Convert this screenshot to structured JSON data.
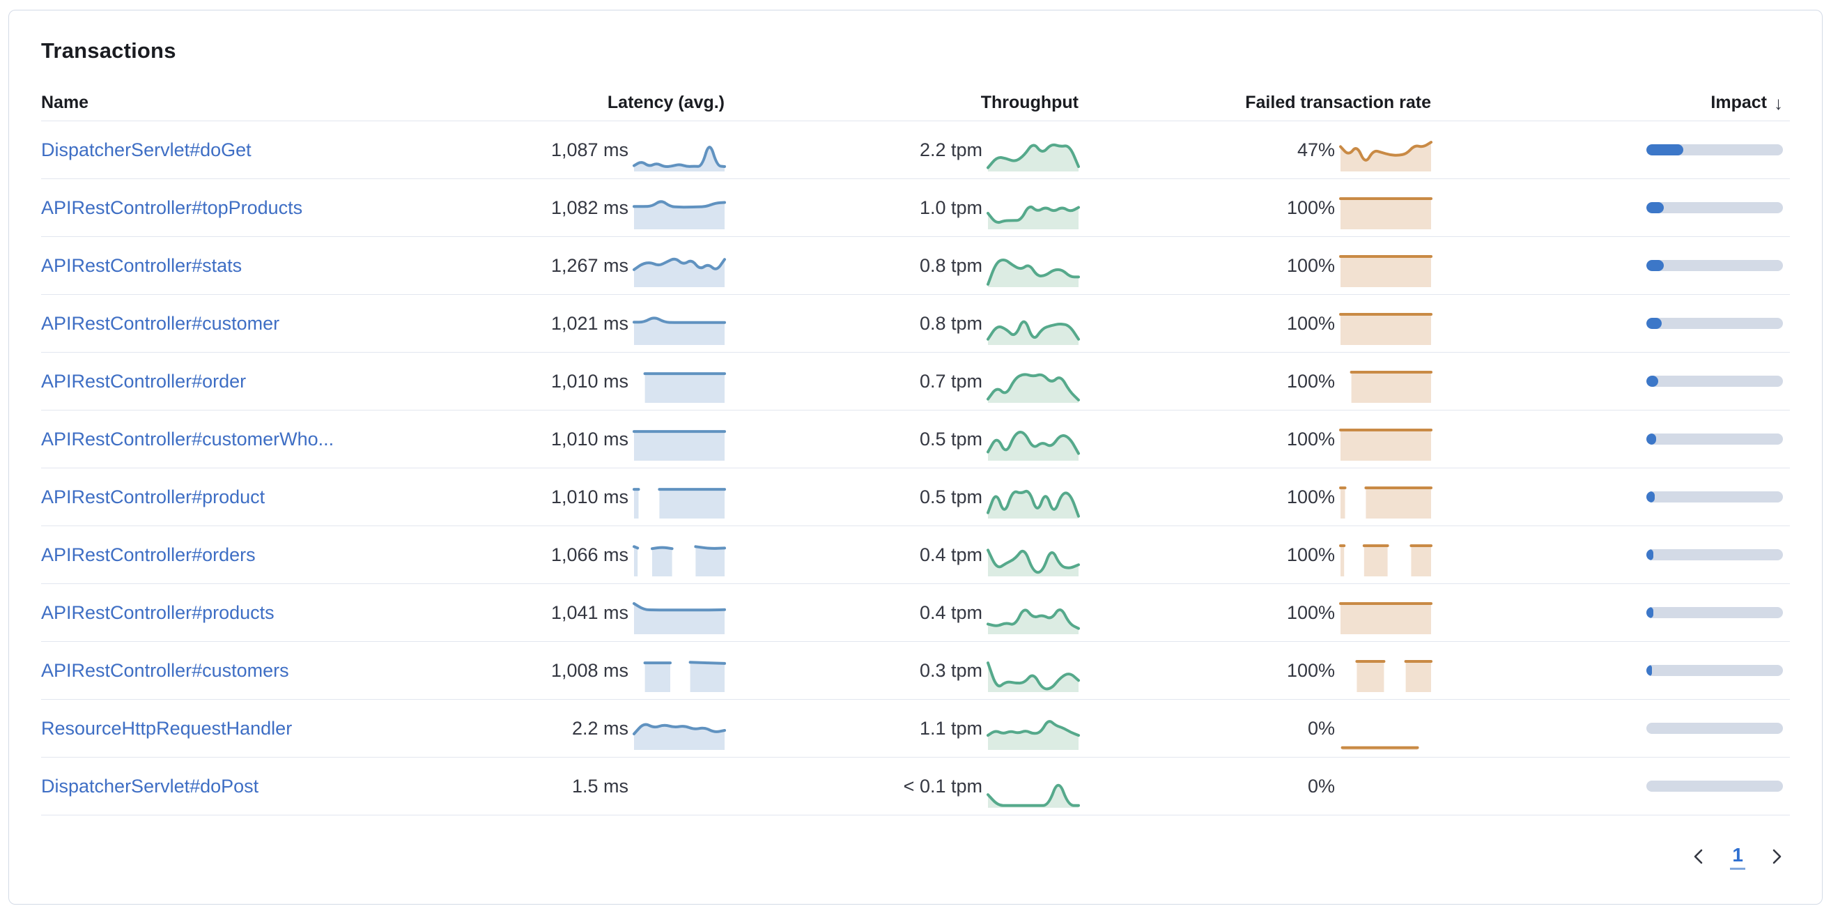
{
  "panel": {
    "title": "Transactions"
  },
  "table": {
    "columns": [
      {
        "key": "name",
        "label": "Name"
      },
      {
        "key": "latency",
        "label": "Latency (avg.)"
      },
      {
        "key": "throughput",
        "label": "Throughput"
      },
      {
        "key": "failed",
        "label": "Failed transaction rate"
      },
      {
        "key": "impact",
        "label": "Impact",
        "sort": "desc",
        "sort_indicator": "↓"
      }
    ],
    "rows": [
      {
        "name": "DispatcherServlet#doGet",
        "latency": "1,087 ms",
        "throughput": "2.2 tpm",
        "failed": "47%",
        "impact_pct": 27,
        "sparks": {
          "latency": [
            {
              "x": [
                0,
                1
              ],
              "v": [
                0.15,
                0.3,
                0.12,
                0.24,
                0.11,
                0.13,
                0.2,
                0.12,
                0.13,
                0.12,
                1.0,
                0.14,
                0.12
              ]
            }
          ],
          "throughput": [
            {
              "x": [
                0,
                1
              ],
              "v": [
                0.08,
                0.45,
                0.4,
                0.28,
                0.5,
                0.95,
                0.55,
                0.9,
                0.8,
                0.85,
                0.12
              ]
            }
          ],
          "failed": [
            {
              "x": [
                0,
                1
              ],
              "v": [
                0.8,
                0.5,
                0.85,
                0.2,
                0.68,
                0.6,
                0.52,
                0.5,
                0.55,
                0.85,
                0.78,
                0.95
              ]
            }
          ]
        }
      },
      {
        "name": "APIRestController#topProducts",
        "latency": "1,082 ms",
        "throughput": "1.0 tpm",
        "failed": "100%",
        "impact_pct": 13,
        "sparks": {
          "latency": [
            {
              "x": [
                0,
                1
              ],
              "v": [
                0.73,
                0.73,
                0.74,
                0.95,
                0.73,
                0.71,
                0.71,
                0.72,
                0.73,
                0.85,
                0.87
              ]
            }
          ],
          "throughput": [
            {
              "x": [
                0,
                1
              ],
              "v": [
                0.5,
                0.15,
                0.25,
                0.25,
                0.26,
                0.8,
                0.55,
                0.72,
                0.55,
                0.72,
                0.55,
                0.7
              ]
            }
          ],
          "failed": [
            {
              "x": [
                0,
                1
              ],
              "v": [
                1,
                1
              ]
            }
          ]
        }
      },
      {
        "name": "APIRestController#stats",
        "latency": "1,267 ms",
        "throughput": "0.8 tpm",
        "failed": "100%",
        "impact_pct": 13,
        "sparks": {
          "latency": [
            {
              "x": [
                0,
                1
              ],
              "v": [
                0.55,
                0.75,
                0.8,
                0.68,
                0.82,
                0.95,
                0.72,
                0.9,
                0.55,
                0.75,
                0.5,
                0.9
              ]
            }
          ],
          "throughput": [
            {
              "x": [
                0,
                1
              ],
              "v": [
                0.05,
                0.8,
                0.92,
                0.7,
                0.55,
                0.75,
                0.32,
                0.35,
                0.55,
                0.55,
                0.3,
                0.3
              ]
            }
          ],
          "failed": [
            {
              "x": [
                0,
                1
              ],
              "v": [
                1,
                1
              ]
            }
          ]
        }
      },
      {
        "name": "APIRestController#customer",
        "latency": "1,021 ms",
        "throughput": "0.8 tpm",
        "failed": "100%",
        "impact_pct": 11,
        "sparks": {
          "latency": [
            {
              "x": [
                0,
                1
              ],
              "v": [
                0.73,
                0.73,
                0.92,
                0.73,
                0.72,
                0.72,
                0.72,
                0.72,
                0.72,
                0.72
              ]
            }
          ],
          "throughput": [
            {
              "x": [
                0,
                1
              ],
              "v": [
                0.15,
                0.62,
                0.5,
                0.2,
                0.95,
                0.06,
                0.52,
                0.62,
                0.68,
                0.62,
                0.15
              ]
            }
          ],
          "failed": [
            {
              "x": [
                0,
                1
              ],
              "v": [
                1,
                1
              ]
            }
          ]
        }
      },
      {
        "name": "APIRestController#order",
        "latency": "1,010 ms",
        "throughput": "0.7 tpm",
        "failed": "100%",
        "impact_pct": 8.5,
        "sparks": {
          "latency": [
            {
              "x": [
                0.12,
                1
              ],
              "v": [
                0.95,
                0.95
              ]
            }
          ],
          "throughput": [
            {
              "x": [
                0,
                1
              ],
              "v": [
                0.08,
                0.5,
                0.2,
                0.8,
                0.95,
                0.85,
                0.95,
                0.62,
                0.9,
                0.35,
                0.05
              ]
            }
          ],
          "failed": [
            {
              "x": [
                0.12,
                1
              ],
              "v": [
                1,
                1
              ]
            }
          ]
        }
      },
      {
        "name": "APIRestController#customerWho...",
        "latency": "1,010 ms",
        "throughput": "0.5 tpm",
        "failed": "100%",
        "impact_pct": 7,
        "sparks": {
          "latency": [
            {
              "x": [
                0,
                1
              ],
              "v": [
                0.95,
                0.95
              ]
            }
          ],
          "throughput": [
            {
              "x": [
                0,
                1
              ],
              "v": [
                0.25,
                0.8,
                0.15,
                0.9,
                0.95,
                0.35,
                0.6,
                0.4,
                0.85,
                0.75,
                0.2
              ]
            }
          ],
          "failed": [
            {
              "x": [
                0,
                1
              ],
              "v": [
                1,
                1
              ]
            }
          ]
        }
      },
      {
        "name": "APIRestController#product",
        "latency": "1,010 ms",
        "throughput": "0.5 tpm",
        "failed": "100%",
        "impact_pct": 6,
        "sparks": {
          "latency": [
            {
              "x": [
                0,
                0.05
              ],
              "v": [
                0.95,
                0.95
              ]
            },
            {
              "x": [
                0.28,
                1
              ],
              "v": [
                0.95,
                0.95
              ]
            }
          ],
          "throughput": [
            {
              "x": [
                0,
                1
              ],
              "v": [
                0.15,
                0.9,
                0.05,
                0.92,
                0.8,
                0.95,
                0.1,
                0.92,
                0.06,
                0.85,
                0.8,
                0.03
              ]
            }
          ],
          "failed": [
            {
              "x": [
                0,
                0.05
              ],
              "v": [
                1,
                1
              ]
            },
            {
              "x": [
                0.28,
                1
              ],
              "v": [
                1,
                1
              ]
            }
          ]
        }
      },
      {
        "name": "APIRestController#orders",
        "latency": "1,066 ms",
        "throughput": "0.4 tpm",
        "failed": "100%",
        "impact_pct": 5,
        "sparks": {
          "latency": [
            {
              "x": [
                0,
                0.04
              ],
              "v": [
                0.97,
                0.92
              ]
            },
            {
              "x": [
                0.2,
                0.42
              ],
              "v": [
                0.9,
                0.95,
                0.9
              ]
            },
            {
              "x": [
                0.68,
                1
              ],
              "v": [
                0.97,
                0.9,
                0.92
              ]
            }
          ],
          "throughput": [
            {
              "x": [
                0,
                1
              ],
              "v": [
                0.85,
                0.2,
                0.4,
                0.55,
                0.95,
                0.1,
                0.08,
                0.95,
                0.3,
                0.22,
                0.35
              ]
            }
          ],
          "failed": [
            {
              "x": [
                0,
                0.04
              ],
              "v": [
                1,
                1
              ]
            },
            {
              "x": [
                0.26,
                0.52
              ],
              "v": [
                1,
                1
              ]
            },
            {
              "x": [
                0.78,
                1
              ],
              "v": [
                1,
                1
              ]
            }
          ]
        }
      },
      {
        "name": "APIRestController#products",
        "latency": "1,041 ms",
        "throughput": "0.4 tpm",
        "failed": "100%",
        "impact_pct": 5,
        "sparks": {
          "latency": [
            {
              "x": [
                0,
                1
              ],
              "v": [
                1,
                0.79,
                0.78,
                0.78,
                0.78,
                0.78,
                0.78,
                0.78,
                0.78,
                0.79
              ]
            }
          ],
          "throughput": [
            {
              "x": [
                0,
                1
              ],
              "v": [
                0.3,
                0.22,
                0.35,
                0.25,
                0.9,
                0.5,
                0.62,
                0.45,
                0.92,
                0.3,
                0.15
              ]
            }
          ],
          "failed": [
            {
              "x": [
                0,
                1
              ],
              "v": [
                1,
                1
              ]
            }
          ]
        }
      },
      {
        "name": "APIRestController#customers",
        "latency": "1,008 ms",
        "throughput": "0.3 tpm",
        "failed": "100%",
        "impact_pct": 4,
        "sparks": {
          "latency": [
            {
              "x": [
                0.12,
                0.4
              ],
              "v": [
                0.95,
                0.95
              ]
            },
            {
              "x": [
                0.62,
                1
              ],
              "v": [
                0.97,
                0.93
              ]
            }
          ],
          "throughput": [
            {
              "x": [
                0,
                1
              ],
              "v": [
                0.95,
                0.06,
                0.32,
                0.26,
                0.26,
                0.62,
                0.06,
                0.06,
                0.45,
                0.62,
                0.35
              ]
            }
          ],
          "failed": [
            {
              "x": [
                0.18,
                0.48
              ],
              "v": [
                1,
                1
              ]
            },
            {
              "x": [
                0.72,
                1
              ],
              "v": [
                1,
                1
              ]
            }
          ]
        }
      },
      {
        "name": "ResourceHttpRequestHandler",
        "latency": "2.2 ms",
        "throughput": "1.1 tpm",
        "failed": "0%",
        "impact_pct": 0,
        "sparks": {
          "latency": [
            {
              "x": [
                0,
                1
              ],
              "v": [
                0.5,
                0.88,
                0.7,
                0.82,
                0.72,
                0.78,
                0.65,
                0.72,
                0.55,
                0.62
              ]
            }
          ],
          "throughput": [
            {
              "x": [
                0,
                1
              ],
              "v": [
                0.45,
                0.62,
                0.5,
                0.6,
                0.52,
                0.62,
                0.5,
                0.55,
                1,
                0.78,
                0.7,
                0.55,
                0.45
              ]
            }
          ],
          "failed": [
            {
              "x": [
                0.02,
                0.85
              ],
              "v": [
                0.03,
                0.03
              ]
            }
          ]
        }
      },
      {
        "name": "DispatcherServlet#doPost",
        "latency": "1.5 ms",
        "throughput": "< 0.1 tpm",
        "failed": "0%",
        "impact_pct": 0,
        "sparks": {
          "latency": [],
          "throughput": [
            {
              "x": [
                0,
                1
              ],
              "v": [
                0.4,
                0.03,
                0.03,
                0.03,
                0.03,
                0.03,
                0.03,
                0.95,
                0.03,
                0.03
              ]
            }
          ],
          "failed": []
        }
      }
    ]
  },
  "pagination": {
    "page": "1"
  },
  "colors": {
    "latency_line": "#6092c0",
    "latency_fill": "#d9e4f1",
    "throughput_line": "#55a98b",
    "throughput_fill": "#dcece3",
    "failed_line": "#c98a45",
    "failed_fill": "#f2e1d1",
    "impact_fill": "#3c77c8",
    "impact_track": "#d3dae6",
    "link": "#3e6ec4",
    "text": "#343741",
    "heading": "#1a1c21"
  }
}
